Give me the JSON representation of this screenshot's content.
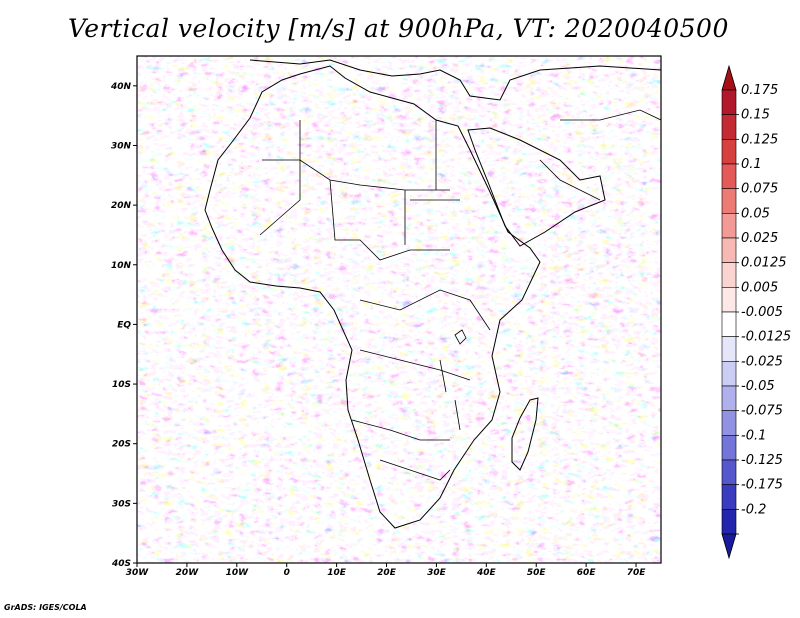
{
  "title": "Vertical velocity [m/s] at 900hPa, VT: 2020040500",
  "footer": "GrADS: IGES/COLA",
  "map": {
    "lon_range": [
      -30,
      75
    ],
    "lat_range": [
      -40,
      45
    ],
    "lat_ticks": [
      {
        "value": 40,
        "label": "40N"
      },
      {
        "value": 30,
        "label": "30N"
      },
      {
        "value": 20,
        "label": "20N"
      },
      {
        "value": 10,
        "label": "10N"
      },
      {
        "value": 0,
        "label": "EQ"
      },
      {
        "value": -10,
        "label": "10S"
      },
      {
        "value": -20,
        "label": "20S"
      },
      {
        "value": -30,
        "label": "30S"
      },
      {
        "value": -40,
        "label": "40S"
      }
    ],
    "lon_ticks": [
      {
        "value": -30,
        "label": "30W"
      },
      {
        "value": -20,
        "label": "20W"
      },
      {
        "value": -10,
        "label": "10W"
      },
      {
        "value": 0,
        "label": "0"
      },
      {
        "value": 10,
        "label": "10E"
      },
      {
        "value": 20,
        "label": "20E"
      },
      {
        "value": 30,
        "label": "30E"
      },
      {
        "value": 40,
        "label": "40E"
      },
      {
        "value": 50,
        "label": "50E"
      },
      {
        "value": 60,
        "label": "60E"
      },
      {
        "value": 70,
        "label": "70E"
      }
    ]
  },
  "colorbar": {
    "levels": [
      {
        "label": "0.175",
        "color": "#b2182b"
      },
      {
        "label": "0.15",
        "color": "#c42a33"
      },
      {
        "label": "0.125",
        "color": "#d6403f"
      },
      {
        "label": "0.1",
        "color": "#e35a58"
      },
      {
        "label": "0.075",
        "color": "#ec7b76"
      },
      {
        "label": "0.05",
        "color": "#f29b96"
      },
      {
        "label": "0.025",
        "color": "#f6b9b4"
      },
      {
        "label": "0.0125",
        "color": "#f9d4d0"
      },
      {
        "label": "0.005",
        "color": "#fce8e6"
      },
      {
        "label": "-0.005",
        "color": "#ffffff"
      },
      {
        "label": "-0.0125",
        "color": "#e6e6fa"
      },
      {
        "label": "-0.025",
        "color": "#cccdf4"
      },
      {
        "label": "-0.05",
        "color": "#afb0ec"
      },
      {
        "label": "-0.075",
        "color": "#9193e2"
      },
      {
        "label": "-0.1",
        "color": "#7375d8"
      },
      {
        "label": "-0.125",
        "color": "#5558cc"
      },
      {
        "label": "-0.175",
        "color": "#393cbe"
      },
      {
        "label": "-0.2",
        "color": "#2326ad"
      }
    ],
    "top_color": "#a50f15",
    "bottom_color": "#1a1a9c"
  }
}
